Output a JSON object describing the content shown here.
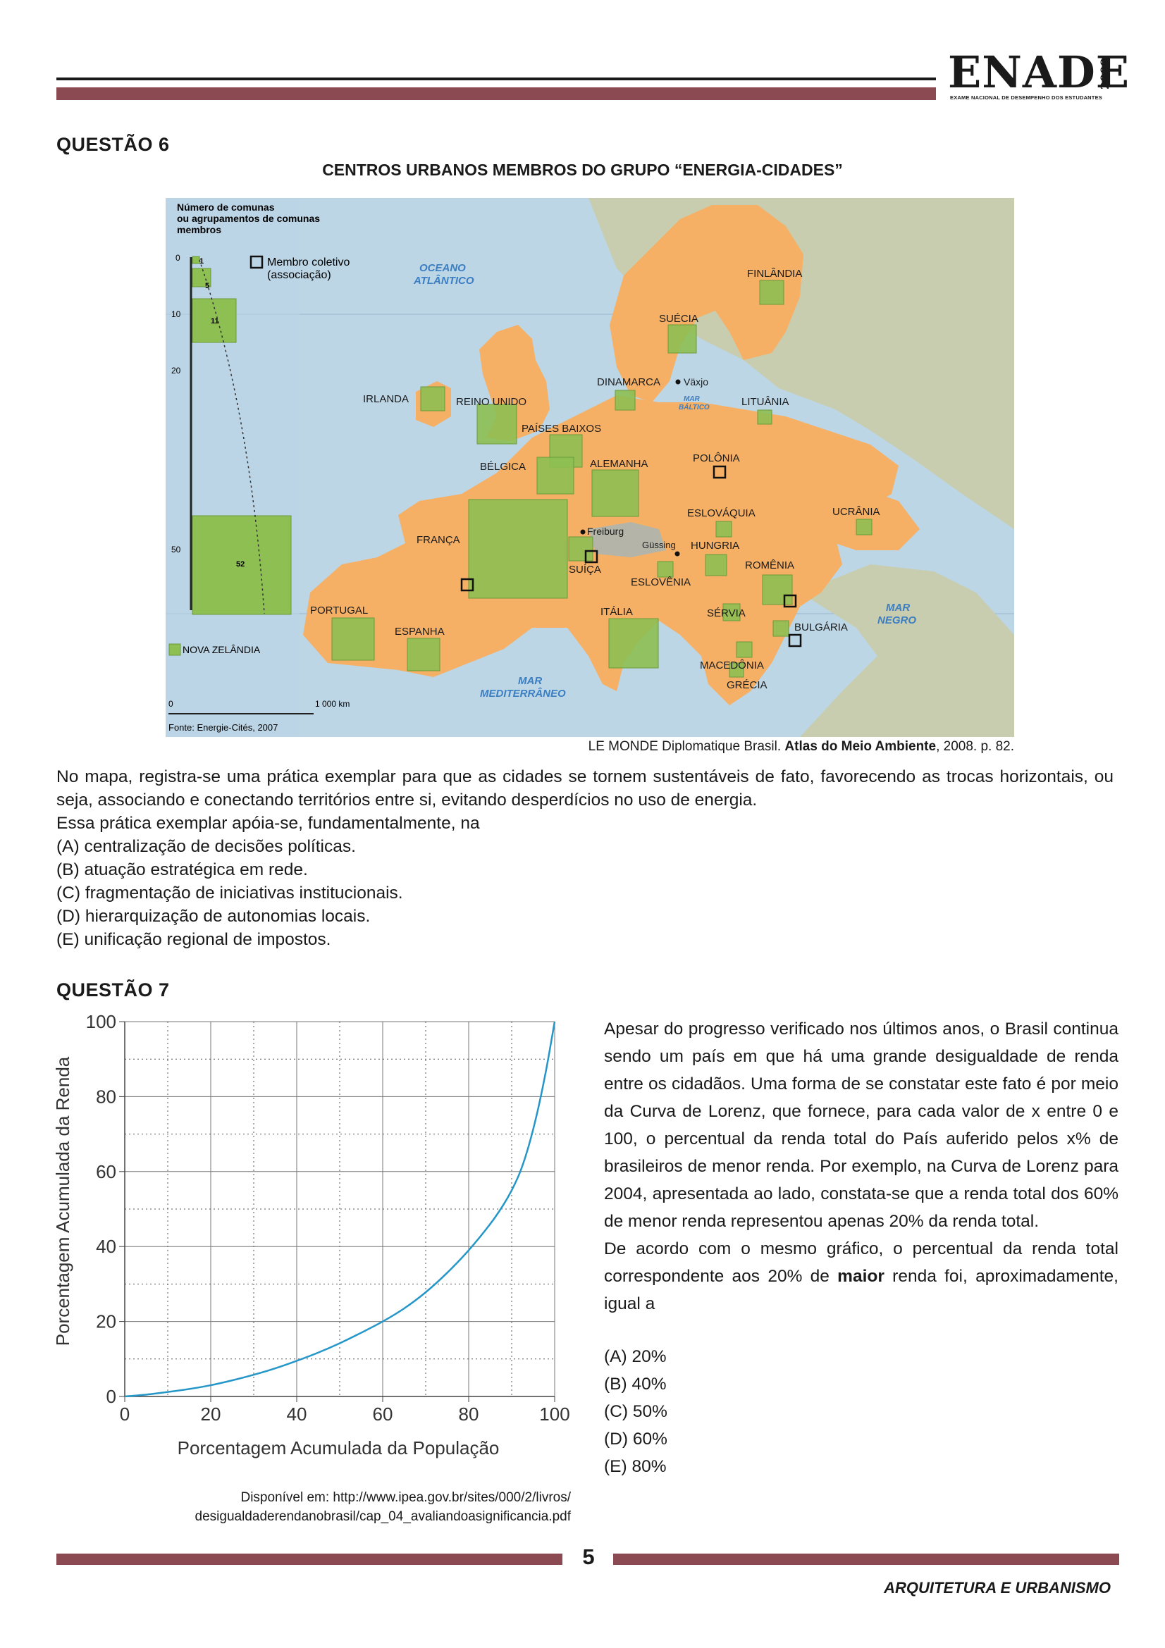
{
  "header": {
    "logo": "ENADE",
    "year": "2008",
    "subtitle": "EXAME NACIONAL DE DESEMPENHO DOS ESTUDANTES"
  },
  "q6": {
    "title": "QUESTÃO 6",
    "map_title": "CENTROS URBANOS MEMBROS DO GRUPO “ENERGIA-CIDADES”",
    "map": {
      "legend_title_lines": [
        "Número de comunas",
        "ou agrupamentos de comunas",
        "membros"
      ],
      "legend_ticks": [
        "0",
        "10",
        "20",
        "50"
      ],
      "legend_values": [
        "1",
        "5",
        "11",
        "52"
      ],
      "collective_member_lines": [
        "Membro coletivo",
        "(associação)"
      ],
      "nz_label": "NOVA ZELÂNDIA",
      "scale_start": "0",
      "scale_end": "1 000 km",
      "map_source": "Fonte: Energie-Cités, 2007",
      "seas": {
        "atlantic": [
          "OCEANO",
          "ATLÂNTICO"
        ],
        "baltic": [
          "MAR",
          "BÁLTICO"
        ],
        "mediterranean": [
          "MAR",
          "MEDITERRÂNEO"
        ],
        "black": [
          "MAR",
          "NEGRO"
        ]
      },
      "countries": {
        "finland": "FINLÂNDIA",
        "sweden": "SUÉCIA",
        "denmark": "DINAMARCA",
        "lithuania": "LITUÂNIA",
        "ireland": "IRLANDA",
        "uk": "REINO UNIDO",
        "netherlands": "PAÍSES BAIXOS",
        "belgium": "BÉLGICA",
        "germany": "ALEMANHA",
        "poland": "POLÔNIA",
        "slovakia": "ESLOVÁQUIA",
        "ukraine": "UCRÂNIA",
        "france": "FRANÇA",
        "hungary": "HUNGRIA",
        "switzerland": "SUÍÇA",
        "slovenia": "ESLOVÊNIA",
        "romania": "ROMÊNIA",
        "portugal": "PORTUGAL",
        "spain": "ESPANHA",
        "italy": "ITÁLIA",
        "serbia": "SÉRVIA",
        "bulgaria": "BULGÁRIA",
        "macedonia": "MACEDÔNIA",
        "greece": "GRÉCIA"
      },
      "cities": {
        "vaxjo": "Växjo",
        "freiburg": "Freiburg",
        "gussing": "Güssing"
      }
    },
    "source": {
      "prefix": "LE MONDE Diplomatique Brasil. ",
      "book": "Atlas do Meio Ambiente",
      "suffix": ",  2008. p. 82."
    },
    "text": "No mapa, registra-se uma prática exemplar para que as cidades se tornem sustentáveis de fato, favorecendo as trocas horizontais, ou seja, associando e conectando territórios entre si, evitando desperdícios no uso de energia.",
    "question": "Essa prática exemplar apóia-se, fundamentalmente, na",
    "options": [
      "(A)  centralização de decisões políticas.",
      "(B)  atuação estratégica em rede.",
      "(C)  fragmentação de iniciativas institucionais.",
      "(D)  hierarquização de autonomias locais.",
      "(E)  unificação regional de impostos."
    ]
  },
  "q7": {
    "title": "QUESTÃO 7",
    "text1": "Apesar do progresso verificado nos últimos anos, o Brasil continua sendo um país em que há uma grande desigualdade de renda entre os cidadãos. Uma forma de se constatar este fato é por meio da Curva de Lorenz, que fornece, para cada valor de x entre 0 e 100, o percentual da renda total do País auferido pelos x% de brasileiros de menor renda. Por exemplo, na Curva de Lorenz para 2004, apresentada ao lado, constata-se que a renda total dos 60% de menor renda representou apenas 20% da renda total.",
    "text2_a": "De acordo com o mesmo gráfico, o percentual da renda total correspondente aos 20% de ",
    "text2_bold": "maior",
    "text2_b": " renda foi, aproximadamente, igual a",
    "options": [
      "(A)  20%",
      "(B)  40%",
      "(C)  50%",
      "(D)  60%",
      "(E)  80%"
    ],
    "chart_source_lines": [
      "Disponível  em:  http://www.ipea.gov.br/sites/000/2/livros/",
      "desigualdaderendanobrasil/cap_04_avaliandoasignificancia.pdf"
    ]
  },
  "chart_data": {
    "type": "line",
    "title": "",
    "xlabel": "Porcentagem Acumulada da População",
    "ylabel": "Porcentagem Acumulada da Renda",
    "xlim": [
      0,
      100
    ],
    "ylim": [
      0,
      100
    ],
    "xticks": [
      0,
      20,
      40,
      60,
      80,
      100
    ],
    "yticks": [
      0,
      20,
      40,
      60,
      80,
      100
    ],
    "grid": true,
    "series": [
      {
        "name": "",
        "color": "#2596c8",
        "x": [
          0,
          5,
          10,
          15,
          20,
          25,
          30,
          35,
          40,
          45,
          50,
          55,
          60,
          65,
          70,
          75,
          80,
          85,
          88,
          90,
          92,
          94,
          96,
          98,
          100
        ],
        "y": [
          0,
          0.5,
          1.2,
          2.0,
          3.0,
          4.3,
          5.8,
          7.5,
          9.5,
          11.7,
          14.2,
          17.0,
          20.0,
          23.5,
          27.8,
          33.0,
          39.0,
          46.0,
          51.0,
          55.0,
          60.0,
          67.0,
          76.0,
          87.0,
          100
        ]
      }
    ]
  },
  "footer": {
    "page": "5",
    "course": "ARQUITETURA E URBANISMO"
  }
}
